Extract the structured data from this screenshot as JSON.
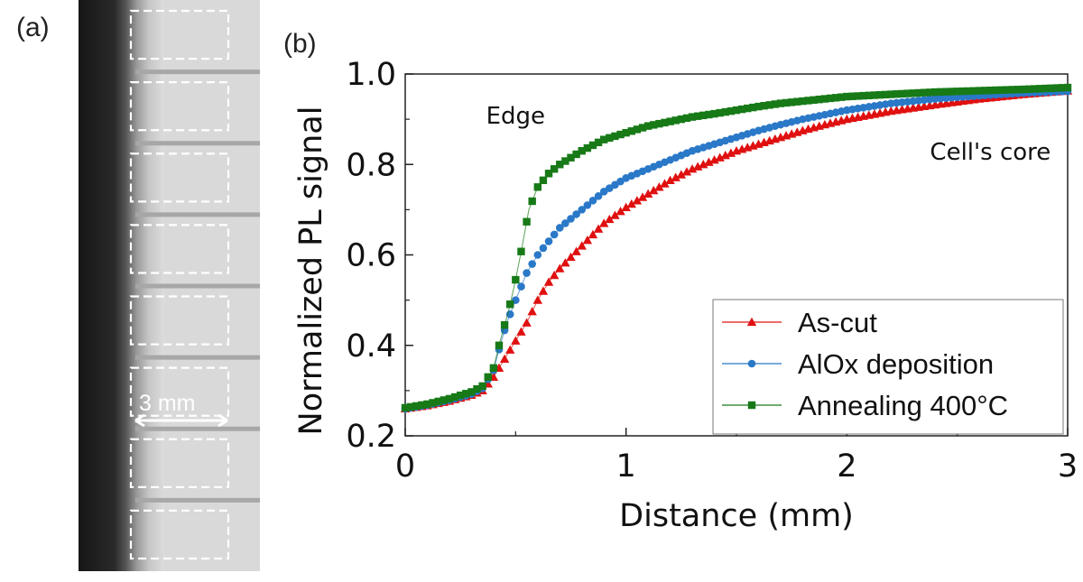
{
  "panel_a": {
    "label": "(a)",
    "scale_bar_label": "3 mm",
    "sample_count": 8
  },
  "panel_b": {
    "label": "(b)"
  },
  "chart_data": {
    "type": "line",
    "xlabel": "Distance (mm)",
    "ylabel": "Normalized PL signal",
    "xlim": [
      0,
      3
    ],
    "ylim": [
      0.2,
      1.0
    ],
    "x_ticks": [
      "0",
      "1",
      "2",
      "3"
    ],
    "y_ticks": [
      "0.2",
      "0.4",
      "0.6",
      "0.8",
      "1.0"
    ],
    "annotations": [
      {
        "text": "Edge",
        "x": 0.5,
        "y": 0.89
      },
      {
        "text": "Cell's core",
        "x": 2.65,
        "y": 0.81
      }
    ],
    "legend_position": "bottom-right",
    "series": [
      {
        "name": "As-cut",
        "color": "#e01010",
        "marker": "triangle",
        "points": [
          [
            0,
            0.26
          ],
          [
            0.1,
            0.267
          ],
          [
            0.2,
            0.277
          ],
          [
            0.3,
            0.29
          ],
          [
            0.35,
            0.3
          ],
          [
            0.4,
            0.33
          ],
          [
            0.45,
            0.37
          ],
          [
            0.5,
            0.41
          ],
          [
            0.55,
            0.45
          ],
          [
            0.6,
            0.5
          ],
          [
            0.65,
            0.54
          ],
          [
            0.7,
            0.57
          ],
          [
            0.8,
            0.62
          ],
          [
            0.9,
            0.67
          ],
          [
            1.0,
            0.705
          ],
          [
            1.1,
            0.735
          ],
          [
            1.2,
            0.765
          ],
          [
            1.3,
            0.79
          ],
          [
            1.4,
            0.81
          ],
          [
            1.5,
            0.83
          ],
          [
            1.6,
            0.845
          ],
          [
            1.7,
            0.86
          ],
          [
            1.8,
            0.875
          ],
          [
            1.9,
            0.888
          ],
          [
            2.0,
            0.9
          ],
          [
            2.2,
            0.918
          ],
          [
            2.4,
            0.932
          ],
          [
            2.6,
            0.945
          ],
          [
            2.8,
            0.955
          ],
          [
            3.0,
            0.963
          ]
        ]
      },
      {
        "name": "AlOx deposition",
        "color": "#2a78c8",
        "marker": "circle",
        "points": [
          [
            0,
            0.26
          ],
          [
            0.1,
            0.268
          ],
          [
            0.2,
            0.279
          ],
          [
            0.3,
            0.292
          ],
          [
            0.35,
            0.305
          ],
          [
            0.4,
            0.345
          ],
          [
            0.43,
            0.4
          ],
          [
            0.46,
            0.45
          ],
          [
            0.5,
            0.5
          ],
          [
            0.55,
            0.56
          ],
          [
            0.6,
            0.6
          ],
          [
            0.65,
            0.63
          ],
          [
            0.7,
            0.66
          ],
          [
            0.8,
            0.7
          ],
          [
            0.9,
            0.74
          ],
          [
            1.0,
            0.77
          ],
          [
            1.1,
            0.79
          ],
          [
            1.2,
            0.81
          ],
          [
            1.3,
            0.83
          ],
          [
            1.4,
            0.845
          ],
          [
            1.5,
            0.86
          ],
          [
            1.6,
            0.875
          ],
          [
            1.7,
            0.888
          ],
          [
            1.8,
            0.9
          ],
          [
            1.9,
            0.91
          ],
          [
            2.0,
            0.92
          ],
          [
            2.2,
            0.935
          ],
          [
            2.4,
            0.945
          ],
          [
            2.6,
            0.952
          ],
          [
            2.8,
            0.958
          ],
          [
            3.0,
            0.962
          ]
        ]
      },
      {
        "name": "Annealing 400°C",
        "color": "#177a17",
        "marker": "square",
        "points": [
          [
            0,
            0.262
          ],
          [
            0.1,
            0.27
          ],
          [
            0.2,
            0.282
          ],
          [
            0.3,
            0.297
          ],
          [
            0.35,
            0.31
          ],
          [
            0.4,
            0.35
          ],
          [
            0.43,
            0.41
          ],
          [
            0.47,
            0.48
          ],
          [
            0.5,
            0.545
          ],
          [
            0.53,
            0.62
          ],
          [
            0.56,
            0.7
          ],
          [
            0.6,
            0.75
          ],
          [
            0.65,
            0.78
          ],
          [
            0.7,
            0.8
          ],
          [
            0.8,
            0.83
          ],
          [
            0.9,
            0.855
          ],
          [
            1.0,
            0.87
          ],
          [
            1.1,
            0.885
          ],
          [
            1.2,
            0.895
          ],
          [
            1.3,
            0.905
          ],
          [
            1.4,
            0.912
          ],
          [
            1.5,
            0.92
          ],
          [
            1.6,
            0.928
          ],
          [
            1.7,
            0.935
          ],
          [
            1.8,
            0.94
          ],
          [
            1.9,
            0.945
          ],
          [
            2.0,
            0.95
          ],
          [
            2.2,
            0.955
          ],
          [
            2.4,
            0.96
          ],
          [
            2.6,
            0.963
          ],
          [
            2.8,
            0.966
          ],
          [
            3.0,
            0.97
          ]
        ]
      }
    ]
  }
}
